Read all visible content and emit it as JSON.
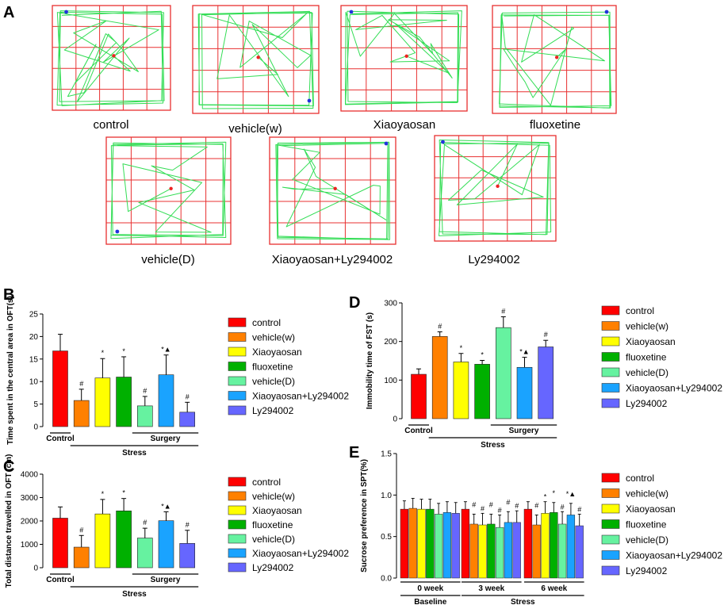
{
  "panel_labels": {
    "A": "A",
    "B": "B",
    "C": "C",
    "D": "D",
    "E": "E"
  },
  "tracks": [
    {
      "label": "control"
    },
    {
      "label": "vehicle(w)"
    },
    {
      "label": "Xiaoyaosan"
    },
    {
      "label": "fluoxetine"
    },
    {
      "label": "vehicle(D)"
    },
    {
      "label": "Xiaoyaosan+Ly294002"
    },
    {
      "label": "Ly294002"
    }
  ],
  "legend": {
    "items": [
      "control",
      "vehicle(w)",
      "Xiaoyaosan",
      "fluoxetine",
      "vehicle(D)",
      "Xiaoyaosan+Ly294002",
      "Ly294002"
    ],
    "colors": [
      "#ff0000",
      "#ff8000",
      "#ffff00",
      "#00b000",
      "#66f2a0",
      "#1aa3ff",
      "#6666ff"
    ]
  },
  "chart_data": [
    {
      "id": "B",
      "type": "bar",
      "ylabel": "Time spent in the central area in OFT(s)",
      "ylim": [
        0,
        25
      ],
      "yticks": [
        0,
        5,
        10,
        15,
        20,
        25
      ],
      "categories": [
        "control",
        "vehicle(w)",
        "Xiaoyaosan",
        "fluoxetine",
        "vehicle(D)",
        "Xiaoyaosan+Ly294002",
        "Ly294002"
      ],
      "values": [
        16.8,
        5.8,
        10.8,
        11.0,
        4.6,
        11.5,
        3.2
      ],
      "errors": [
        3.7,
        2.5,
        4.3,
        4.5,
        2.1,
        4.4,
        2.2
      ],
      "marks": [
        "",
        "#",
        "*",
        "*",
        "#",
        "*▲",
        "#"
      ],
      "groups": {
        "control": "Control",
        "stress": "Stress",
        "surgery": "Surgery"
      }
    },
    {
      "id": "C",
      "type": "bar",
      "ylabel": "Total distance travelled in OFT (cm)",
      "ylim": [
        0,
        4000
      ],
      "yticks": [
        0,
        1000,
        2000,
        3000,
        4000
      ],
      "categories": [
        "control",
        "vehicle(w)",
        "Xiaoyaosan",
        "fluoxetine",
        "vehicle(D)",
        "Xiaoyaosan+Ly294002",
        "Ly294002"
      ],
      "values": [
        2120,
        880,
        2300,
        2430,
        1270,
        2010,
        1040
      ],
      "errors": [
        480,
        500,
        620,
        530,
        420,
        380,
        560
      ],
      "marks": [
        "",
        "#",
        "*",
        "*",
        "#",
        "*▲",
        "#"
      ],
      "groups": {
        "control": "Control",
        "stress": "Stress",
        "surgery": "Surgery"
      }
    },
    {
      "id": "D",
      "type": "bar",
      "ylabel": "Immobility time of FST (s)",
      "ylim": [
        0,
        300
      ],
      "yticks": [
        0,
        100,
        200,
        300
      ],
      "categories": [
        "control",
        "vehicle(w)",
        "Xiaoyaosan",
        "fluoxetine",
        "vehicle(D)",
        "Xiaoyaosan+Ly294002",
        "Ly294002"
      ],
      "values": [
        115,
        213,
        147,
        141,
        236,
        133,
        186
      ],
      "errors": [
        14,
        12,
        22,
        10,
        28,
        26,
        17
      ],
      "marks": [
        "",
        "#",
        "*",
        "*",
        "#",
        "*▲",
        "#"
      ],
      "groups": {
        "control": "Control",
        "stress": "Stress",
        "surgery": "Surgery"
      }
    },
    {
      "id": "E",
      "type": "bar",
      "ylabel": "Sucrose preference in SPT(%)",
      "ylim": [
        0,
        1.5
      ],
      "yticks": [
        "0.0",
        "0.5",
        "1.0",
        "1.5"
      ],
      "categories": [
        "0 week",
        "3 week",
        "6 week"
      ],
      "series_names": [
        "control",
        "vehicle(w)",
        "Xiaoyaosan",
        "fluoxetine",
        "vehicle(D)",
        "Xiaoyaosan+Ly294002",
        "Ly294002"
      ],
      "values": [
        [
          0.83,
          0.84,
          0.83,
          0.83,
          0.77,
          0.79,
          0.78
        ],
        [
          0.83,
          0.65,
          0.64,
          0.65,
          0.61,
          0.67,
          0.67
        ],
        [
          0.83,
          0.64,
          0.78,
          0.79,
          0.65,
          0.76,
          0.63
        ]
      ],
      "errors": [
        [
          0.1,
          0.12,
          0.12,
          0.12,
          0.13,
          0.13,
          0.13
        ],
        [
          0.09,
          0.12,
          0.14,
          0.12,
          0.15,
          0.13,
          0.14
        ],
        [
          0.09,
          0.12,
          0.14,
          0.12,
          0.15,
          0.14,
          0.14
        ]
      ],
      "marks": [
        [
          "",
          "",
          "",
          "",
          "",
          "",
          ""
        ],
        [
          "",
          "#",
          "#",
          "#",
          "#",
          "#",
          "#"
        ],
        [
          "",
          "#",
          "*",
          "*",
          "#",
          "*▲",
          "#"
        ]
      ],
      "groups": {
        "baseline": "Baseline",
        "stress": "Stress"
      }
    }
  ]
}
